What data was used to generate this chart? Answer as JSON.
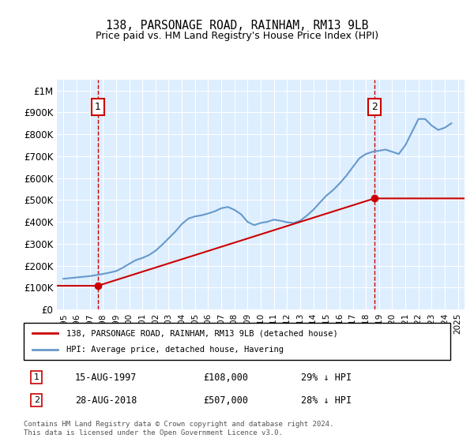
{
  "title1": "138, PARSONAGE ROAD, RAINHAM, RM13 9LB",
  "title2": "Price paid vs. HM Land Registry's House Price Index (HPI)",
  "ylabel_ticks": [
    "£0",
    "£100K",
    "£200K",
    "£300K",
    "£400K",
    "£500K",
    "£600K",
    "£700K",
    "£800K",
    "£900K",
    "£1M"
  ],
  "ytick_values": [
    0,
    100000,
    200000,
    300000,
    400000,
    500000,
    600000,
    700000,
    800000,
    900000,
    1000000
  ],
  "xlim_start": 1994.5,
  "xlim_end": 2025.5,
  "ylim": [
    0,
    1050000
  ],
  "hpi_color": "#6699cc",
  "price_color": "#cc0000",
  "background_color": "#ddeeff",
  "plot_bg": "#ddeeff",
  "grid_color": "#ffffff",
  "transaction1_date": "15-AUG-1997",
  "transaction1_price": 108000,
  "transaction1_label": "1",
  "transaction1_x": 1997.62,
  "transaction2_date": "28-AUG-2018",
  "transaction2_price": 507000,
  "transaction2_label": "2",
  "transaction2_x": 2018.65,
  "legend_label1": "138, PARSONAGE ROAD, RAINHAM, RM13 9LB (detached house)",
  "legend_label2": "HPI: Average price, detached house, Havering",
  "footnote": "Contains HM Land Registry data © Crown copyright and database right 2024.\nThis data is licensed under the Open Government Licence v3.0.",
  "hpi_data": {
    "years": [
      1995,
      1995.5,
      1996,
      1996.5,
      1997,
      1997.5,
      1998,
      1998.5,
      1999,
      1999.5,
      2000,
      2000.5,
      2001,
      2001.5,
      2002,
      2002.5,
      2003,
      2003.5,
      2004,
      2004.5,
      2005,
      2005.5,
      2006,
      2006.5,
      2007,
      2007.5,
      2008,
      2008.5,
      2009,
      2009.5,
      2010,
      2010.5,
      2011,
      2011.5,
      2012,
      2012.5,
      2013,
      2013.5,
      2014,
      2014.5,
      2015,
      2015.5,
      2016,
      2016.5,
      2017,
      2017.5,
      2018,
      2018.5,
      2019,
      2019.5,
      2020,
      2020.5,
      2021,
      2021.5,
      2022,
      2022.5,
      2023,
      2023.5,
      2024,
      2024.5
    ],
    "values": [
      140000,
      143000,
      146000,
      149000,
      152000,
      157000,
      162000,
      168000,
      175000,
      190000,
      208000,
      225000,
      235000,
      248000,
      268000,
      295000,
      325000,
      355000,
      390000,
      415000,
      425000,
      430000,
      438000,
      448000,
      462000,
      468000,
      455000,
      435000,
      400000,
      385000,
      395000,
      400000,
      410000,
      405000,
      398000,
      395000,
      405000,
      428000,
      455000,
      488000,
      520000,
      545000,
      575000,
      610000,
      650000,
      690000,
      710000,
      720000,
      725000,
      730000,
      720000,
      710000,
      750000,
      810000,
      870000,
      870000,
      840000,
      820000,
      830000,
      850000
    ]
  },
  "price_data": {
    "years": [
      1997.62,
      2018.65
    ],
    "values": [
      108000,
      507000
    ],
    "line_years": [
      1995,
      1997.62,
      2018.65,
      2025
    ],
    "line_values": [
      108000,
      108000,
      507000,
      540000
    ]
  },
  "xtick_years": [
    1995,
    1996,
    1997,
    1998,
    1999,
    2000,
    2001,
    2002,
    2003,
    2004,
    2005,
    2006,
    2007,
    2008,
    2009,
    2010,
    2011,
    2012,
    2013,
    2014,
    2015,
    2016,
    2017,
    2018,
    2019,
    2020,
    2021,
    2022,
    2023,
    2024,
    2025
  ]
}
